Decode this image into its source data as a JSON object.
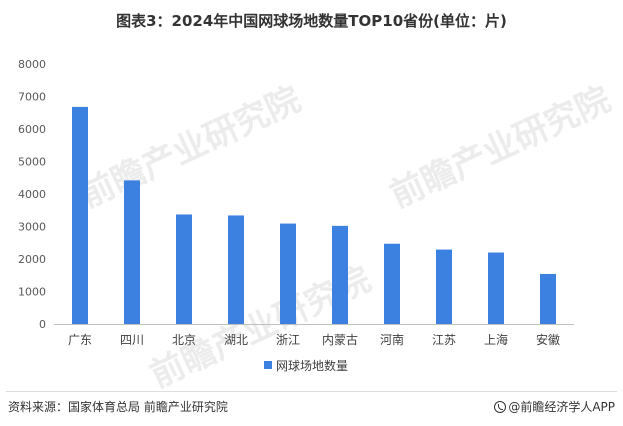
{
  "header": {
    "title": "图表3：2024年中国网球场地数量TOP10省份(单位：片)"
  },
  "chart_data": {
    "type": "bar",
    "title": "图表3：2024年中国网球场地数量TOP10省份(单位：片)",
    "categories": [
      "广东",
      "四川",
      "北京",
      "湖北",
      "浙江",
      "内蒙古",
      "河南",
      "江苏",
      "上海",
      "安徽"
    ],
    "series": [
      {
        "name": "网球场地数量",
        "values": [
          6680,
          4420,
          3370,
          3340,
          3090,
          3020,
          2470,
          2290,
          2200,
          1540
        ],
        "color": "#3c80e0"
      }
    ],
    "ylim": [
      0,
      8000
    ],
    "yticks": [
      0,
      1000,
      2000,
      3000,
      4000,
      5000,
      6000,
      7000,
      8000
    ],
    "grid": false,
    "legend": "bottom-center"
  },
  "watermark": {
    "text": "前瞻产业研究院"
  },
  "footer": {
    "source": "资料来源：国家体育总局 前瞻产业研究院",
    "brand": "@前瞻经济学人APP"
  }
}
